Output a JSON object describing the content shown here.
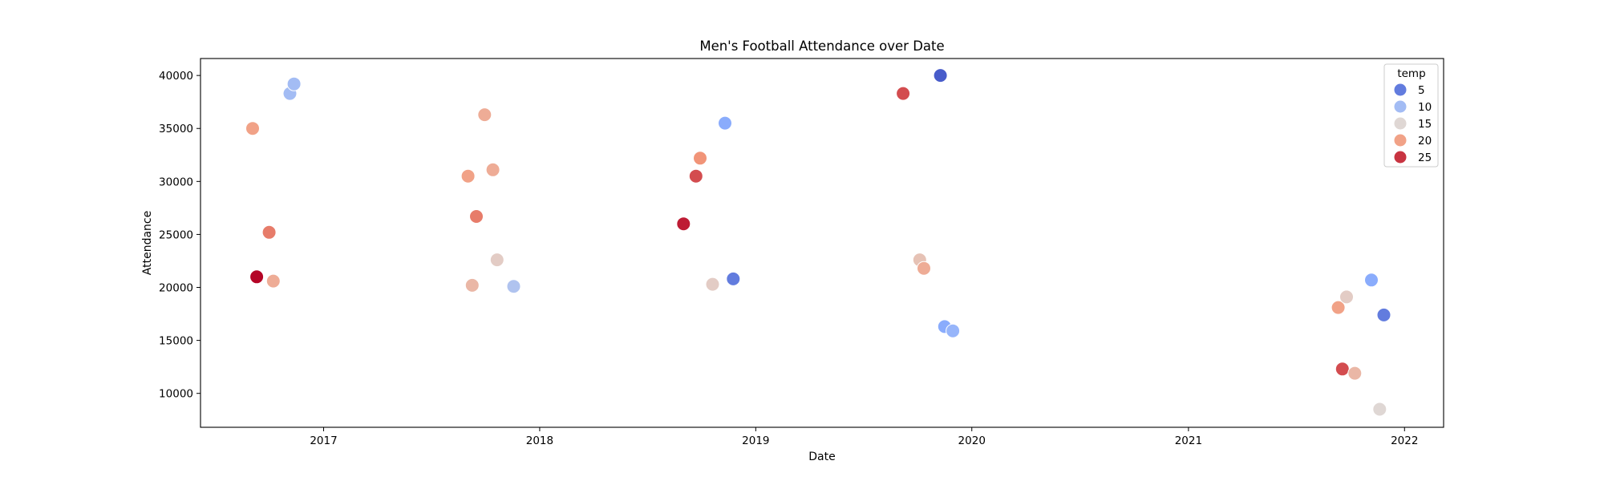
{
  "chart_data": {
    "type": "scatter",
    "title": "Men's Football Attendance over Date",
    "xlabel": "Date",
    "ylabel": "Attendance",
    "x_ticks": [
      "2017",
      "2018",
      "2019",
      "2020",
      "2021",
      "2022"
    ],
    "y_ticks": [
      10000,
      15000,
      20000,
      25000,
      30000,
      35000,
      40000
    ],
    "xlim": [
      "2016-06-07",
      "2022-03-08"
    ],
    "ylim": [
      6800,
      41600
    ],
    "grid": false,
    "legend": {
      "title": "temp",
      "position": "top-right",
      "items": [
        {
          "label": "5",
          "temp": 5
        },
        {
          "label": "10",
          "temp": 10
        },
        {
          "label": "15",
          "temp": 15
        },
        {
          "label": "20",
          "temp": 20
        },
        {
          "label": "25",
          "temp": 25
        }
      ]
    },
    "color_scale": {
      "name": "coolwarm",
      "min": 2,
      "max": 27
    },
    "points": [
      {
        "date": "2016-09-03",
        "attendance": 35000,
        "temp": 20
      },
      {
        "date": "2016-09-10",
        "attendance": 21000,
        "temp": 27
      },
      {
        "date": "2016-10-01",
        "attendance": 25200,
        "temp": 22
      },
      {
        "date": "2016-10-08",
        "attendance": 20600,
        "temp": 19
      },
      {
        "date": "2016-11-05",
        "attendance": 38300,
        "temp": 10
      },
      {
        "date": "2016-11-12",
        "attendance": 39200,
        "temp": 10
      },
      {
        "date": "2017-09-02",
        "attendance": 30500,
        "temp": 20
      },
      {
        "date": "2017-09-09",
        "attendance": 20200,
        "temp": 18
      },
      {
        "date": "2017-09-16",
        "attendance": 26700,
        "temp": 22
      },
      {
        "date": "2017-09-30",
        "attendance": 36300,
        "temp": 19
      },
      {
        "date": "2017-10-14",
        "attendance": 31100,
        "temp": 19
      },
      {
        "date": "2017-10-21",
        "attendance": 22600,
        "temp": 16
      },
      {
        "date": "2017-11-18",
        "attendance": 20100,
        "temp": 11
      },
      {
        "date": "2018-09-01",
        "attendance": 26000,
        "temp": 26
      },
      {
        "date": "2018-09-22",
        "attendance": 30500,
        "temp": 24
      },
      {
        "date": "2018-09-29",
        "attendance": 32200,
        "temp": 21
      },
      {
        "date": "2018-10-20",
        "attendance": 20300,
        "temp": 16
      },
      {
        "date": "2018-11-10",
        "attendance": 35500,
        "temp": 8
      },
      {
        "date": "2018-11-24",
        "attendance": 20800,
        "temp": 5
      },
      {
        "date": "2019-09-07",
        "attendance": 38300,
        "temp": 24
      },
      {
        "date": "2019-10-05",
        "attendance": 22600,
        "temp": 17
      },
      {
        "date": "2019-10-12",
        "attendance": 21800,
        "temp": 19
      },
      {
        "date": "2019-11-09",
        "attendance": 40000,
        "temp": 3
      },
      {
        "date": "2019-11-16",
        "attendance": 16300,
        "temp": 8
      },
      {
        "date": "2019-11-30",
        "attendance": 15900,
        "temp": 9
      },
      {
        "date": "2021-09-11",
        "attendance": 18100,
        "temp": 20
      },
      {
        "date": "2021-09-18",
        "attendance": 12300,
        "temp": 24
      },
      {
        "date": "2021-09-25",
        "attendance": 19100,
        "temp": 16
      },
      {
        "date": "2021-10-09",
        "attendance": 11900,
        "temp": 18
      },
      {
        "date": "2021-11-06",
        "attendance": 20700,
        "temp": 8
      },
      {
        "date": "2021-11-20",
        "attendance": 8500,
        "temp": 15
      },
      {
        "date": "2021-11-27",
        "attendance": 17400,
        "temp": 5
      }
    ]
  }
}
